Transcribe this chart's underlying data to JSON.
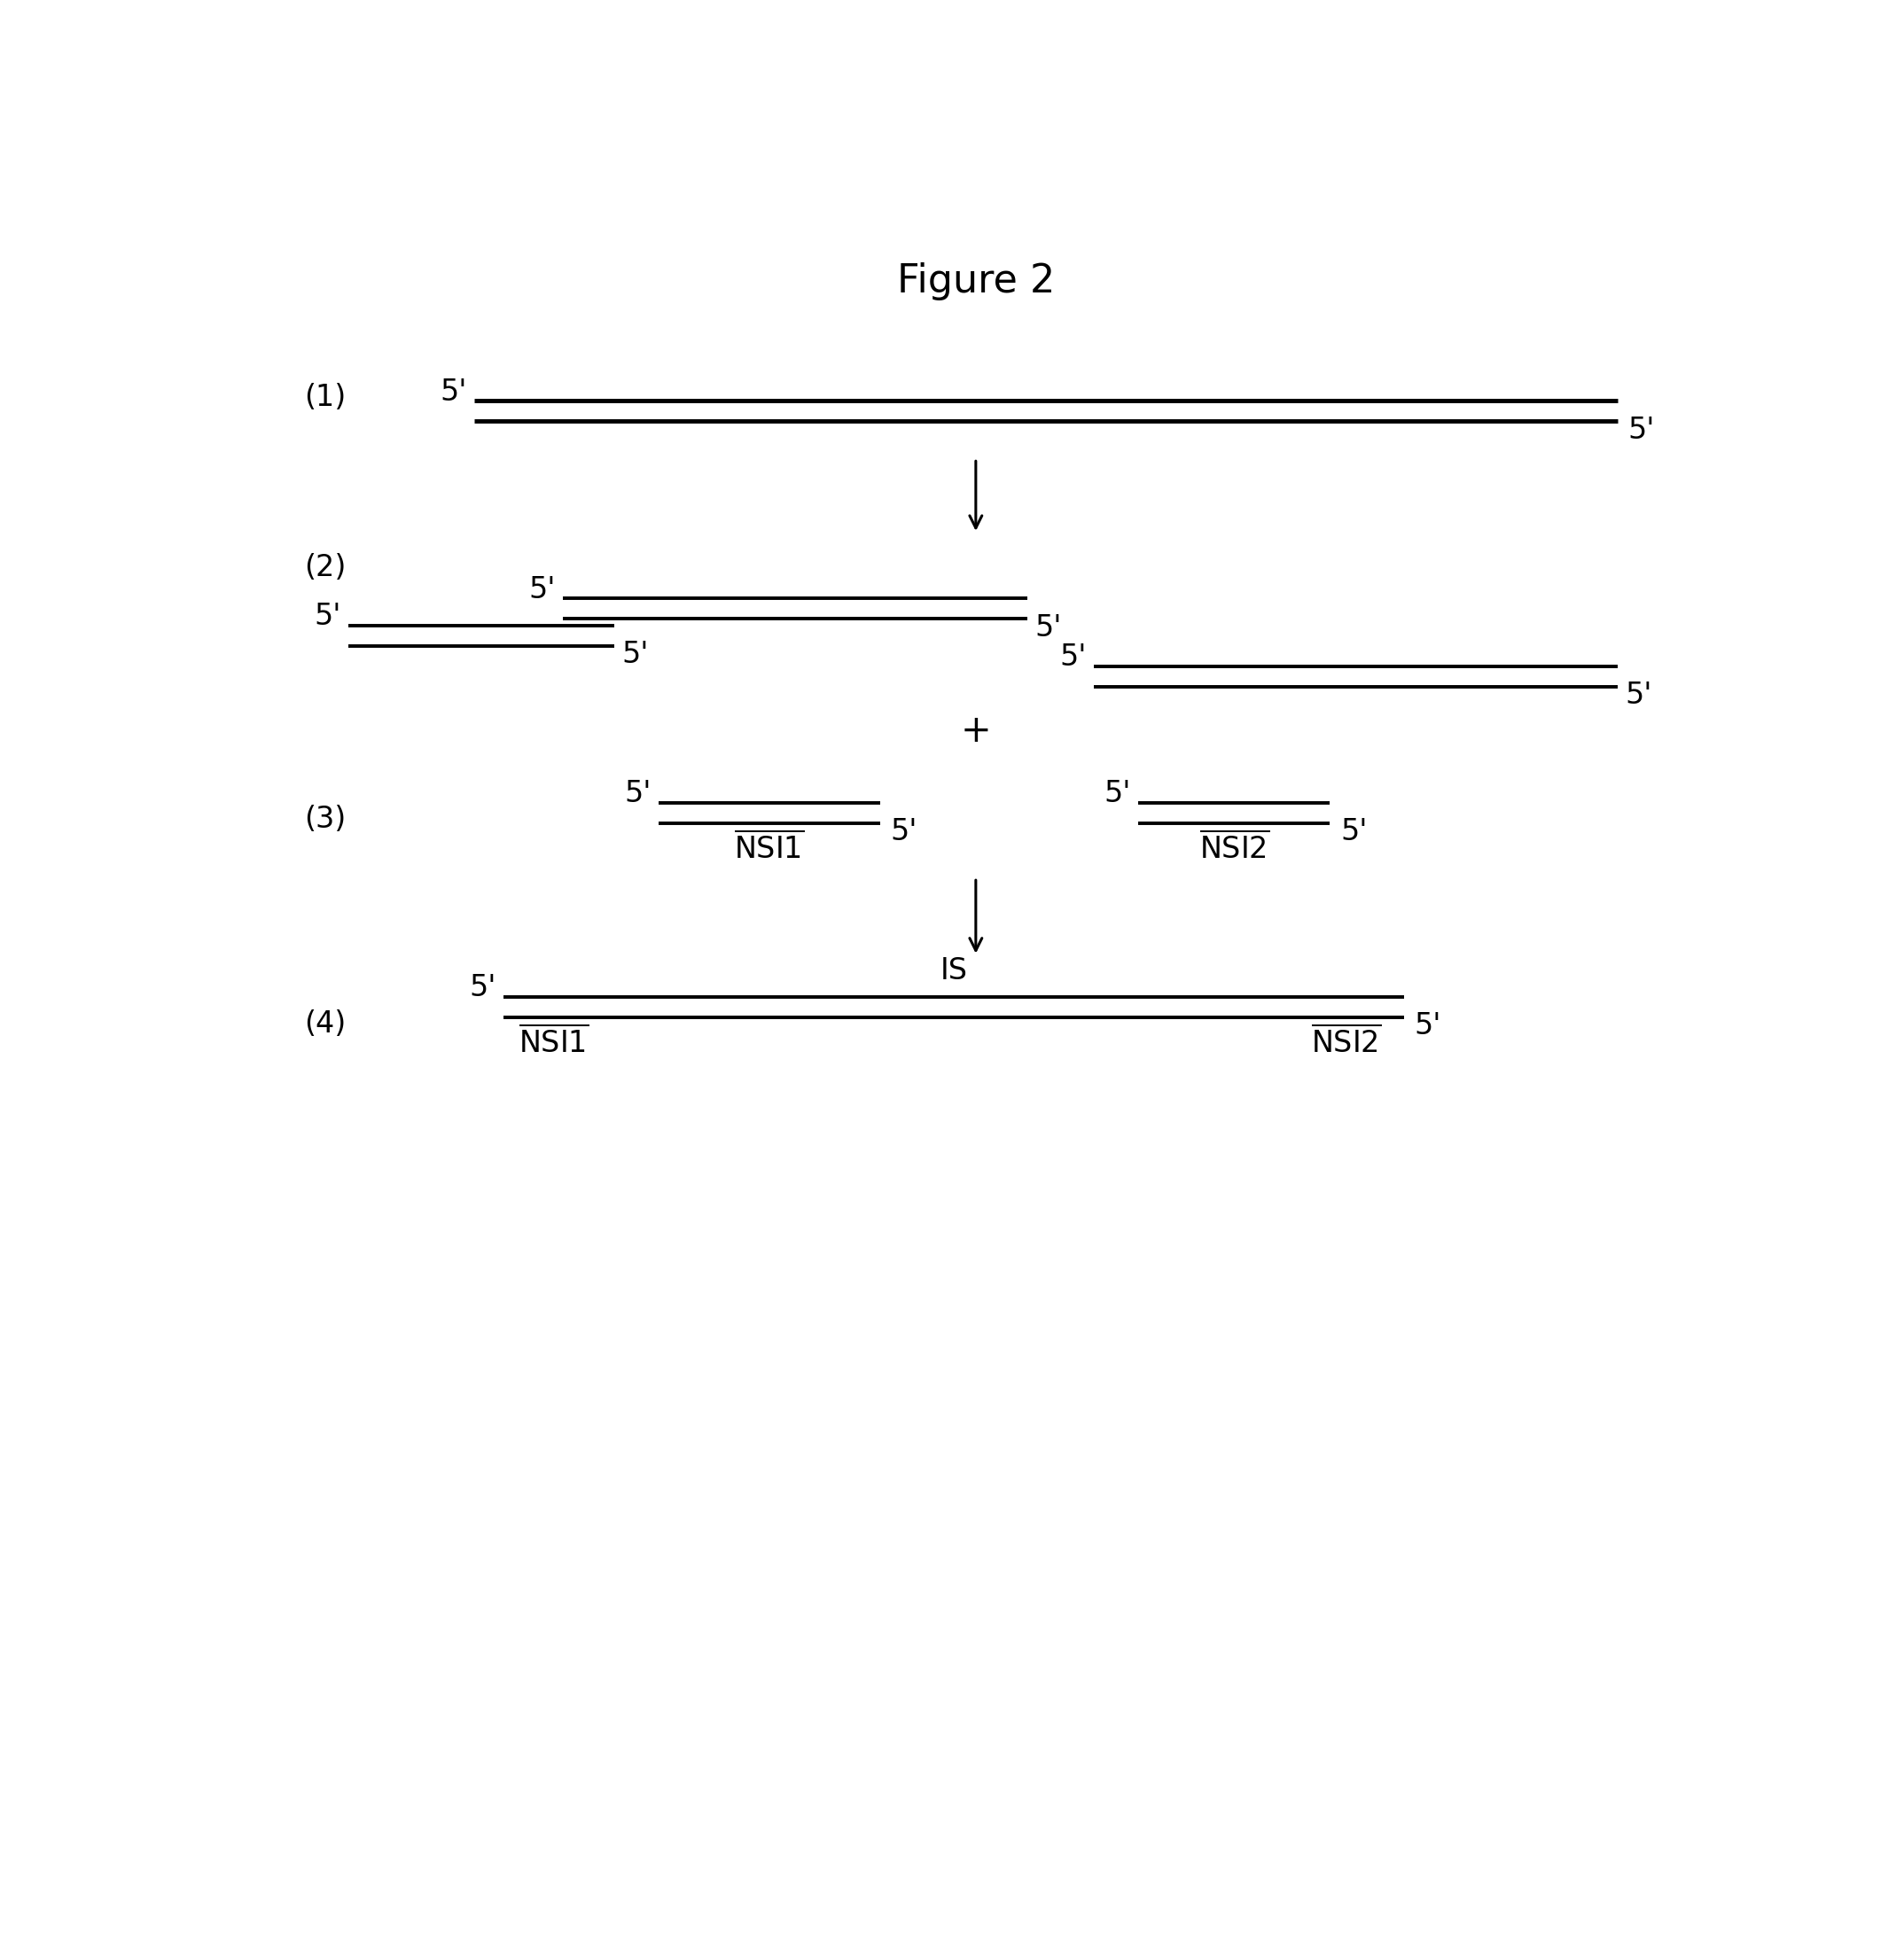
{
  "title": "Figure 2",
  "title_fontsize": 32,
  "text_fontsize": 24,
  "background_color": "#ffffff",
  "fig_width": 21.48,
  "fig_height": 21.97
}
